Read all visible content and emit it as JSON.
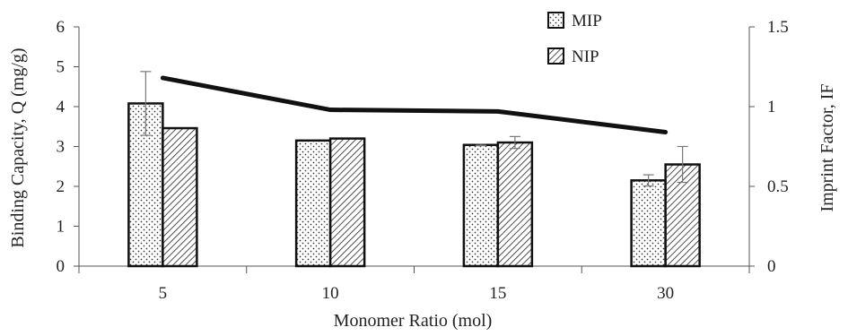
{
  "chart_data": {
    "type": "bar",
    "categories": [
      "5",
      "10",
      "15",
      "30"
    ],
    "series": [
      {
        "name": "MIP",
        "values": [
          4.08,
          3.15,
          3.04,
          2.15
        ],
        "error": [
          0.8,
          0.0,
          0.02,
          0.14
        ],
        "pattern": "dots"
      },
      {
        "name": "NIP",
        "values": [
          3.46,
          3.2,
          3.1,
          2.55
        ],
        "error": [
          0.0,
          0.0,
          0.15,
          0.45
        ],
        "pattern": "diagonal-hatch"
      }
    ],
    "line_series": {
      "values": [
        1.18,
        0.98,
        0.97,
        0.84
      ],
      "axis": "right"
    },
    "xlabel": "Monomer Ratio (mol)",
    "ylabel": "Binding Capacity, Q (mg/g)",
    "y2label": "Imprint Factor, IF",
    "ylim": [
      0,
      6
    ],
    "y2lim": [
      0,
      1.5
    ],
    "yticks": [
      "0",
      "1",
      "2",
      "3",
      "4",
      "5",
      "6"
    ],
    "y2ticks": [
      "0",
      "0.5",
      "1",
      "1.5"
    ],
    "legend_position": "top-right",
    "grid": false,
    "colors": {
      "bar_edge": "#111111",
      "line": "#111111",
      "error_bar": "#777777"
    }
  }
}
